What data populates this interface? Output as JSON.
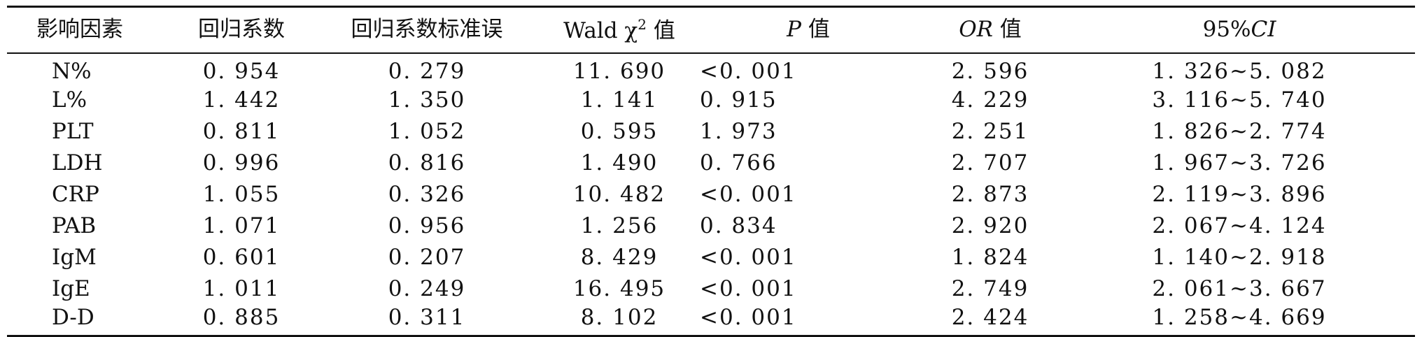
{
  "table": {
    "headers": {
      "factor": "影响因素",
      "coef": "回归系数",
      "se": "回归系数标准误",
      "wald_pre": "Wald χ",
      "wald_sup": "2",
      "wald_post": " 值",
      "p_italic": "P",
      "p_post": " 值",
      "or_italic": "OR",
      "or_post": " 值",
      "ci_pre": "95%",
      "ci_italic": "CI"
    },
    "rows": [
      {
        "factor": "N%",
        "coef": "0. 954",
        "se": "0. 279",
        "wald": "11. 690",
        "p": "<0. 001",
        "or": "2. 596",
        "ci": "1. 326~5. 082"
      },
      {
        "factor": "L%",
        "coef": "1. 442",
        "se": "1. 350",
        "wald": "1. 141",
        "p": "0. 915",
        "or": "4. 229",
        "ci": "3. 116~5. 740"
      },
      {
        "factor": "PLT",
        "coef": "0. 811",
        "se": "1. 052",
        "wald": "0. 595",
        "p": "1. 973",
        "or": "2. 251",
        "ci": "1. 826~2. 774"
      },
      {
        "factor": "LDH",
        "coef": "0. 996",
        "se": "0. 816",
        "wald": "1. 490",
        "p": "0. 766",
        "or": "2. 707",
        "ci": "1. 967~3. 726"
      },
      {
        "factor": "CRP",
        "coef": "1. 055",
        "se": "0. 326",
        "wald": "10. 482",
        "p": "<0. 001",
        "or": "2. 873",
        "ci": "2. 119~3. 896"
      },
      {
        "factor": "PAB",
        "coef": "1. 071",
        "se": "0. 956",
        "wald": "1. 256",
        "p": "0. 834",
        "or": "2. 920",
        "ci": "2. 067~4. 124"
      },
      {
        "factor": "IgM",
        "coef": "0. 601",
        "se": "0. 207",
        "wald": "8. 429",
        "p": "<0. 001",
        "or": "1. 824",
        "ci": "1. 140~2. 918"
      },
      {
        "factor": "IgE",
        "coef": "1. 011",
        "se": "0. 249",
        "wald": "16. 495",
        "p": "<0. 001",
        "or": "2. 749",
        "ci": "2. 061~3. 667"
      },
      {
        "factor": "D-D",
        "coef": "0. 885",
        "se": "0. 311",
        "wald": "8. 102",
        "p": "<0. 001",
        "or": "2. 424",
        "ci": "1. 258~4. 669"
      }
    ]
  }
}
